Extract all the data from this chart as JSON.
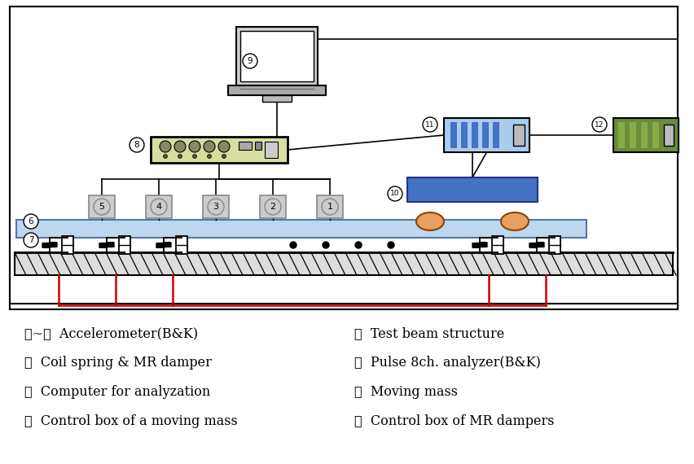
{
  "fig_width": 8.52,
  "fig_height": 5.7,
  "bg_color": "#ffffff",
  "legend_lines_left": [
    "①~⑥  Accelerometer(B&K)",
    "⑧  Coil spring & MR damper",
    "⑩  Computer for analyzation",
    "⑪  Control box of a moving mass"
  ],
  "legend_lines_right": [
    "⑦  Test beam structure",
    "⑨  Pulse 8ch. analyzer(B&K)",
    "⒪  Moving mass",
    "⑫  Control box of MR dampers"
  ],
  "beam_color": "#bdd7ee",
  "beam_outline": "#5577aa",
  "moving_mass_color": "#4472c4",
  "wheel_color": "#e8a060",
  "cb11_fill": "#aaccee",
  "cb11_stripe": "#4472c4",
  "cb12_fill": "#6b8c3a",
  "cb12_stripe": "#4a6a28",
  "analyzer_fill": "#d8dea0",
  "red_wire": "#cc0000",
  "ground_fill": "#cccccc",
  "accel_fill": "#cccccc",
  "accel_outline": "#888888"
}
